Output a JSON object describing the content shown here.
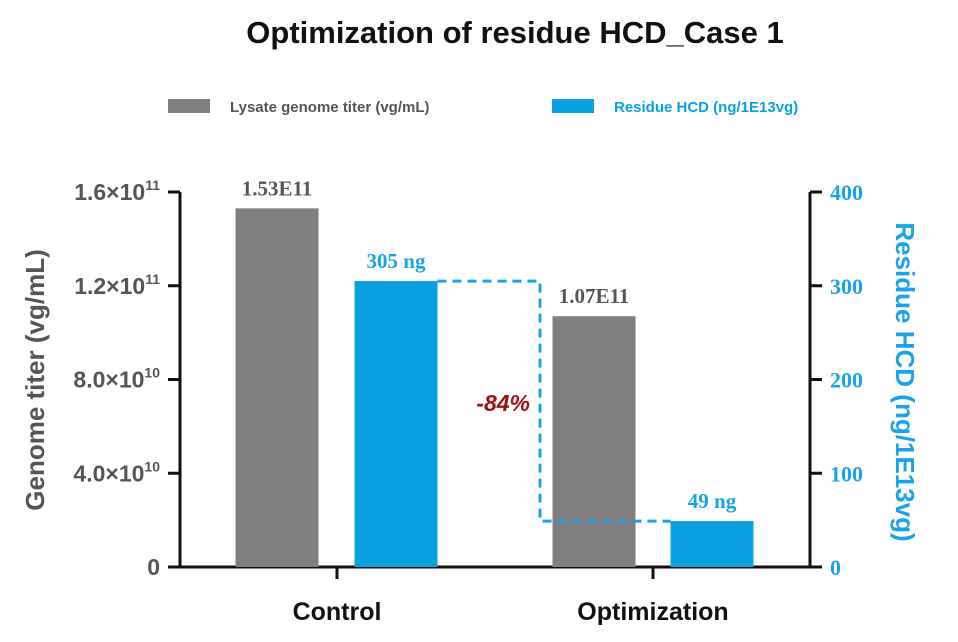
{
  "chart_data": {
    "type": "bar",
    "title": "Optimization of residue HCD_Case 1",
    "categories": [
      "Control",
      "Optimization"
    ],
    "series": [
      {
        "name": "Lysate genome titer (vg/mL)",
        "axis": "left",
        "color": "#7f7f7f",
        "values": [
          153000000000,
          107000000000
        ],
        "data_labels": [
          "1.53E11",
          "1.07E11"
        ]
      },
      {
        "name": "Residue HCD (ng/1E13vg)",
        "axis": "right",
        "color": "#0aa0e0",
        "values": [
          305,
          49
        ],
        "data_labels": [
          "305 ng",
          "49 ng"
        ]
      }
    ],
    "y_left": {
      "label": "Genome titer (vg/mL)",
      "range": [
        0,
        160000000000
      ],
      "ticks": [
        {
          "value": 0,
          "mantissa": "0",
          "exponent": ""
        },
        {
          "value": 40000000000,
          "mantissa": "4.0×10",
          "exponent": "10"
        },
        {
          "value": 80000000000,
          "mantissa": "8.0×10",
          "exponent": "10"
        },
        {
          "value": 120000000000,
          "mantissa": "1.2×10",
          "exponent": "11"
        },
        {
          "value": 160000000000,
          "mantissa": "1.6×10",
          "exponent": "11"
        }
      ],
      "color": "#555555"
    },
    "y_right": {
      "label": "Residue HCD (ng/1E13vg)",
      "range": [
        0,
        400
      ],
      "ticks": [
        "0",
        "100",
        "200",
        "300",
        "400"
      ],
      "color": "#1aa3e8"
    },
    "annotation": {
      "text": "-84%",
      "from_value": 305,
      "to_value": 49,
      "color": "#a01010"
    },
    "legend_position": "top-center",
    "grid": false
  }
}
